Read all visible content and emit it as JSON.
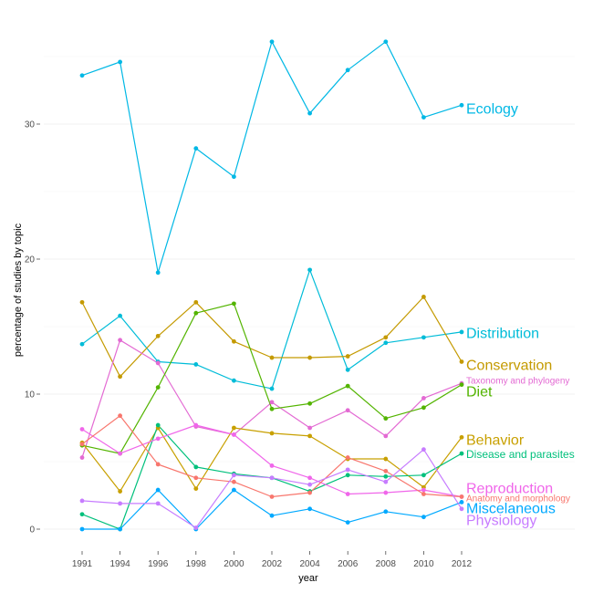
{
  "chart_data": {
    "type": "line",
    "title": "",
    "xlabel": "year",
    "ylabel": "percentage of studies by topic",
    "x": [
      1991,
      1994,
      1996,
      1998,
      2000,
      2002,
      2004,
      2006,
      2008,
      2010,
      2012
    ],
    "x_tick_labels": [
      "1991",
      "1994",
      "1996",
      "1998",
      "2000",
      "2002",
      "2004",
      "2006",
      "2008",
      "2010",
      "2012"
    ],
    "y_ticks": [
      0,
      10,
      20,
      30
    ],
    "y_tick_labels": [
      "0",
      "10",
      "20",
      "30"
    ],
    "ylim": [
      -1,
      37
    ],
    "grid": true,
    "legend": "direct labels at right end of each line",
    "series": [
      {
        "name": "Ecology",
        "color": "#00B8E5",
        "label_size": 16,
        "values": [
          33.6,
          34.6,
          19.0,
          28.2,
          26.1,
          36.1,
          30.8,
          34.0,
          36.1,
          30.5,
          31.4
        ]
      },
      {
        "name": "Distribution",
        "color": "#00BCD8",
        "label_size": 16,
        "values": [
          13.7,
          15.8,
          12.4,
          12.2,
          11.0,
          10.4,
          19.2,
          11.8,
          13.8,
          14.2,
          14.6
        ]
      },
      {
        "name": "Conservation",
        "color": "#C49A00",
        "label_size": 16,
        "values": [
          16.8,
          11.3,
          14.3,
          16.8,
          13.9,
          12.7,
          12.7,
          12.8,
          14.2,
          17.2,
          12.4
        ]
      },
      {
        "name": "Taxonomy and phylogeny",
        "color": "#E36AD3",
        "label_size": 10,
        "values": [
          5.3,
          14.0,
          12.3,
          7.6,
          7.0,
          9.4,
          7.5,
          8.8,
          6.9,
          9.7,
          10.8
        ]
      },
      {
        "name": "Diet",
        "color": "#53B400",
        "label_size": 16,
        "values": [
          6.2,
          5.6,
          10.5,
          16.0,
          16.7,
          8.9,
          9.3,
          10.6,
          8.2,
          9.0,
          10.7
        ]
      },
      {
        "name": "Behavior",
        "color": "#C8A000",
        "label_size": 16,
        "values": [
          6.4,
          2.8,
          7.5,
          3.0,
          7.5,
          7.1,
          6.9,
          5.2,
          5.2,
          3.1,
          6.8
        ]
      },
      {
        "name": "Disease and parasites",
        "color": "#00C07C",
        "label_size": 12,
        "values": [
          1.1,
          0.0,
          7.7,
          4.6,
          4.1,
          3.8,
          2.8,
          4.0,
          3.9,
          4.0,
          5.6
        ]
      },
      {
        "name": "Reproduction",
        "color": "#F066EA",
        "label_size": 16,
        "values": [
          7.4,
          5.6,
          6.7,
          7.7,
          7.0,
          4.7,
          3.8,
          2.6,
          2.7,
          2.9,
          2.4
        ]
      },
      {
        "name": "Anatomy and morphology",
        "color": "#F8766D",
        "label_size": 10,
        "values": [
          6.3,
          8.4,
          4.8,
          3.8,
          3.5,
          2.4,
          2.7,
          5.3,
          4.3,
          2.6,
          2.4
        ]
      },
      {
        "name": "Miscelaneous",
        "color": "#00A9FF",
        "label_size": 16,
        "values": [
          0.0,
          0.0,
          2.9,
          0.0,
          2.9,
          1.0,
          1.5,
          0.5,
          1.3,
          0.9,
          2.0
        ]
      },
      {
        "name": "Physiology",
        "color": "#C77CFF",
        "label_size": 16,
        "values": [
          2.1,
          1.9,
          1.9,
          0.1,
          4.0,
          3.8,
          3.3,
          4.4,
          3.5,
          5.9,
          1.5
        ]
      }
    ]
  }
}
